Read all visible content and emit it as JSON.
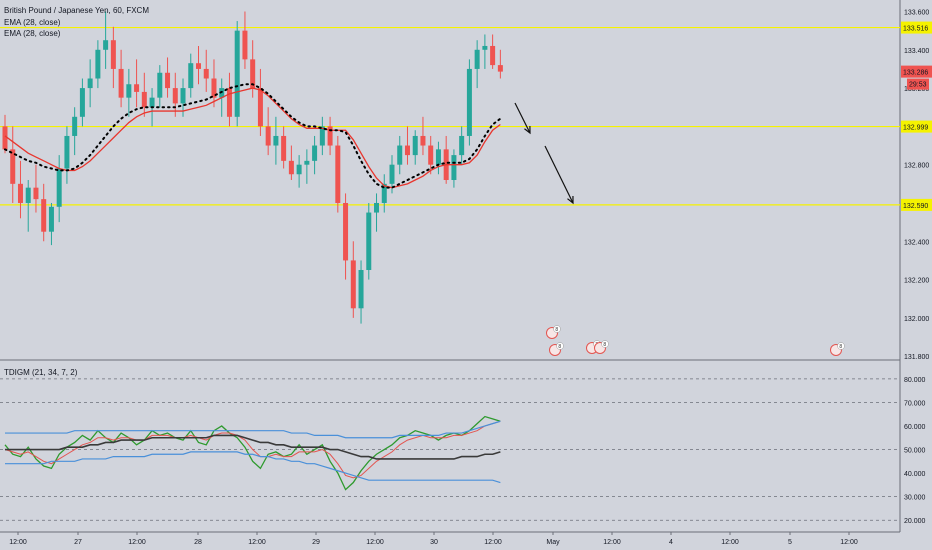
{
  "header": {
    "symbol_line": "British Pound / Japanese Yen, 60, FXCM",
    "ema_1": "EMA (28, close)",
    "ema_2": "EMA (28, close)"
  },
  "indicator": {
    "label": "TDIGM (21, 34, 7, 2)",
    "ticks": [
      "80.000",
      "70.000",
      "60.000",
      "50.000",
      "40.000",
      "30.000",
      "20.000"
    ],
    "dashed_levels": [
      80,
      70,
      50,
      30,
      20
    ]
  },
  "colors": {
    "background": "#d1d4dc",
    "level_line": "#f5f200",
    "up_candle": "#26a69a",
    "down_candle": "#ef5350",
    "ema_red": "#e8362e",
    "ema_dots": "#000000",
    "rsi_green": "#2e9a2e",
    "signal_red": "#e35550",
    "band_blue": "#4a90d9",
    "mid_black": "#3a3a3a",
    "price_label": "#ef5350",
    "level_label": "#f5f200"
  },
  "chart_data": [
    {
      "type": "candlestick",
      "title": "British Pound / Japanese Yen, 60, FXCM",
      "ylim": [
        131.78,
        133.66
      ],
      "y_ticks": [
        "133.600",
        "133.400",
        "133.200",
        "133.000",
        "132.800",
        "132.600",
        "132.400",
        "132.200",
        "132.000",
        "131.800"
      ],
      "x_ticks": [
        "12:00",
        "27",
        "12:00",
        "28",
        "12:00",
        "29",
        "12:00",
        "30",
        "12:00",
        "May",
        "12:00",
        "4",
        "12:00",
        "5",
        "12:00"
      ],
      "horizontal_levels": [
        {
          "value": 133.516,
          "label": "133.516"
        },
        {
          "value": 132.999,
          "label": "132.999"
        },
        {
          "value": 132.59,
          "label": "132.590"
        }
      ],
      "last_price": {
        "value": 133.286,
        "label": "133.286",
        "countdown": "29:53"
      },
      "ema_series": [
        {
          "style": "solid-red",
          "values": [
            132.95,
            132.92,
            132.89,
            132.86,
            132.84,
            132.82,
            132.8,
            132.78,
            132.77,
            132.77,
            132.79,
            132.82,
            132.86,
            132.9,
            132.94,
            132.98,
            133.02,
            133.05,
            133.07,
            133.08,
            133.08,
            133.08,
            133.08,
            133.08,
            133.09,
            133.1,
            133.11,
            133.13,
            133.15,
            133.17,
            133.18,
            133.19,
            133.2,
            133.19,
            133.16,
            133.12,
            133.08,
            133.04,
            133.01,
            132.99,
            132.99,
            132.99,
            132.98,
            132.98,
            132.98,
            132.93,
            132.86,
            132.79,
            132.73,
            132.69,
            132.68,
            132.69,
            132.7,
            132.72,
            132.74,
            132.77,
            132.79,
            132.8,
            132.8,
            132.8,
            132.81,
            132.85,
            132.92,
            132.98,
            133.01
          ]
        },
        {
          "style": "dotted-black",
          "values": [
            132.88,
            132.86,
            132.84,
            132.82,
            132.81,
            132.79,
            132.78,
            132.77,
            132.77,
            132.78,
            132.81,
            132.85,
            132.9,
            132.95,
            133,
            133.04,
            133.07,
            133.09,
            133.1,
            133.1,
            133.1,
            133.1,
            133.1,
            133.11,
            133.12,
            133.13,
            133.14,
            133.16,
            133.18,
            133.2,
            133.21,
            133.22,
            133.22,
            133.2,
            133.17,
            133.13,
            133.09,
            133.05,
            133.02,
            133,
            133,
            132.99,
            132.98,
            132.98,
            132.97,
            132.9,
            132.82,
            132.75,
            132.7,
            132.68,
            132.68,
            132.7,
            132.72,
            132.74,
            132.76,
            132.78,
            132.8,
            132.81,
            132.81,
            132.81,
            132.83,
            132.88,
            132.95,
            133.01,
            133.04
          ]
        }
      ]
    },
    {
      "type": "line",
      "title": "TDIGM (21, 34, 7, 2)",
      "ylim": [
        15,
        88
      ],
      "series": [
        {
          "style": "green",
          "values": [
            52,
            48,
            47,
            51,
            46,
            43,
            42,
            48,
            51,
            53,
            56,
            54,
            58,
            55,
            53,
            57,
            55,
            52,
            54,
            58,
            56,
            57,
            55,
            54,
            58,
            53,
            52,
            58,
            60,
            57,
            55,
            51,
            45,
            42,
            48,
            49,
            47,
            48,
            52,
            48,
            50,
            52,
            45,
            40,
            33,
            36,
            41,
            45,
            48,
            50,
            52,
            55,
            56,
            58,
            57,
            56,
            54,
            56,
            57,
            56,
            58,
            61,
            64,
            63,
            62
          ]
        },
        {
          "style": "red",
          "values": [
            50,
            49,
            48,
            49,
            47,
            45,
            44,
            46,
            48,
            50,
            52,
            53,
            55,
            55,
            54,
            55,
            55,
            54,
            54,
            56,
            56,
            56,
            55,
            55,
            56,
            55,
            54,
            56,
            57,
            57,
            56,
            54,
            50,
            47,
            47,
            48,
            47,
            47,
            49,
            49,
            49,
            50,
            48,
            44,
            39,
            38,
            39,
            42,
            45,
            47,
            49,
            52,
            54,
            55,
            56,
            55,
            55,
            55,
            56,
            56,
            57,
            58,
            60,
            61,
            62
          ]
        },
        {
          "style": "blue-upper",
          "values": [
            57,
            57,
            57,
            57,
            57,
            57,
            57,
            57,
            57,
            58,
            58,
            58,
            58,
            58,
            58,
            58,
            58,
            58,
            58,
            58,
            58,
            58,
            58,
            58,
            58,
            58,
            58,
            58,
            58,
            58,
            58,
            58,
            58,
            58,
            58,
            58,
            58,
            57,
            57,
            57,
            56,
            56,
            56,
            56,
            55,
            55,
            55,
            55,
            55,
            55,
            55,
            56,
            56,
            56,
            56,
            56,
            56,
            57,
            57,
            57,
            58,
            59,
            60,
            61,
            62
          ]
        },
        {
          "style": "blue-lower",
          "values": [
            44,
            44,
            44,
            44,
            44,
            44,
            45,
            45,
            45,
            45,
            46,
            46,
            46,
            46,
            47,
            47,
            47,
            47,
            47,
            48,
            48,
            48,
            48,
            48,
            49,
            49,
            49,
            49,
            49,
            49,
            49,
            48,
            48,
            47,
            47,
            46,
            46,
            45,
            45,
            44,
            44,
            43,
            42,
            41,
            40,
            39,
            38,
            37,
            37,
            37,
            37,
            37,
            37,
            37,
            37,
            37,
            37,
            37,
            37,
            37,
            37,
            37,
            37,
            37,
            36
          ]
        },
        {
          "style": "black-mid",
          "values": [
            50,
            50,
            50,
            50,
            50,
            50,
            50,
            50,
            51,
            51,
            51,
            52,
            52,
            53,
            53,
            54,
            54,
            54,
            54,
            55,
            55,
            55,
            55,
            55,
            55,
            55,
            55,
            56,
            56,
            56,
            56,
            55,
            54,
            53,
            53,
            52,
            52,
            51,
            51,
            51,
            51,
            51,
            50,
            50,
            49,
            48,
            47,
            47,
            46,
            46,
            46,
            46,
            46,
            46,
            46,
            46,
            46,
            46,
            46,
            47,
            47,
            47,
            48,
            48,
            49
          ]
        }
      ]
    }
  ],
  "candles": [
    [
      133.0,
      133.06,
      132.86,
      132.88
    ],
    [
      132.88,
      133.0,
      132.6,
      132.7
    ],
    [
      132.7,
      132.82,
      132.52,
      132.6
    ],
    [
      132.6,
      132.72,
      132.45,
      132.68
    ],
    [
      132.68,
      132.8,
      132.55,
      132.62
    ],
    [
      132.62,
      132.7,
      132.4,
      132.45
    ],
    [
      132.45,
      132.6,
      132.38,
      132.58
    ],
    [
      132.58,
      132.85,
      132.5,
      132.78
    ],
    [
      132.78,
      133.0,
      132.7,
      132.95
    ],
    [
      132.95,
      133.1,
      132.85,
      133.05
    ],
    [
      133.05,
      133.25,
      133.0,
      133.2
    ],
    [
      133.2,
      133.35,
      133.1,
      133.25
    ],
    [
      133.25,
      133.45,
      133.2,
      133.4
    ],
    [
      133.4,
      133.6,
      133.3,
      133.45
    ],
    [
      133.45,
      133.52,
      133.2,
      133.3
    ],
    [
      133.3,
      133.4,
      133.1,
      133.15
    ],
    [
      133.15,
      133.3,
      133.05,
      133.22
    ],
    [
      133.22,
      133.35,
      133.1,
      133.18
    ],
    [
      133.18,
      133.28,
      133.05,
      133.1
    ],
    [
      133.1,
      133.2,
      133.0,
      133.15
    ],
    [
      133.15,
      133.32,
      133.1,
      133.28
    ],
    [
      133.28,
      133.36,
      133.15,
      133.2
    ],
    [
      133.2,
      133.28,
      133.05,
      133.12
    ],
    [
      133.12,
      133.25,
      133.05,
      133.2
    ],
    [
      133.2,
      133.38,
      133.15,
      133.33
    ],
    [
      133.33,
      133.42,
      133.22,
      133.3
    ],
    [
      133.3,
      133.4,
      133.18,
      133.25
    ],
    [
      133.25,
      133.35,
      133.1,
      133.15
    ],
    [
      133.15,
      133.25,
      133.05,
      133.2
    ],
    [
      133.2,
      133.28,
      133.0,
      133.05
    ],
    [
      133.05,
      133.55,
      133.0,
      133.5
    ],
    [
      133.5,
      133.6,
      133.3,
      133.35
    ],
    [
      133.35,
      133.45,
      133.15,
      133.2
    ],
    [
      133.2,
      133.3,
      132.95,
      133.0
    ],
    [
      133.0,
      133.1,
      132.85,
      132.9
    ],
    [
      132.9,
      133.05,
      132.8,
      132.95
    ],
    [
      132.95,
      133.0,
      132.78,
      132.82
    ],
    [
      132.82,
      132.9,
      132.72,
      132.75
    ],
    [
      132.75,
      132.85,
      132.68,
      132.8
    ],
    [
      132.8,
      132.88,
      132.7,
      132.82
    ],
    [
      132.82,
      132.95,
      132.75,
      132.9
    ],
    [
      132.9,
      133.05,
      132.85,
      133.0
    ],
    [
      133.0,
      133.05,
      132.85,
      132.9
    ],
    [
      132.9,
      132.95,
      132.55,
      132.6
    ],
    [
      132.6,
      132.65,
      132.2,
      132.3
    ],
    [
      132.3,
      132.4,
      132.0,
      132.05
    ],
    [
      132.05,
      132.3,
      131.97,
      132.25
    ],
    [
      132.25,
      132.6,
      132.2,
      132.55
    ],
    [
      132.55,
      132.65,
      132.45,
      132.6
    ],
    [
      132.6,
      132.75,
      132.55,
      132.7
    ],
    [
      132.7,
      132.85,
      132.65,
      132.8
    ],
    [
      132.8,
      132.95,
      132.75,
      132.9
    ],
    [
      132.9,
      133.0,
      132.8,
      132.85
    ],
    [
      132.85,
      132.98,
      132.8,
      132.95
    ],
    [
      132.95,
      133.05,
      132.85,
      132.9
    ],
    [
      132.9,
      132.95,
      132.75,
      132.8
    ],
    [
      132.8,
      132.92,
      132.75,
      132.88
    ],
    [
      132.88,
      132.95,
      132.7,
      132.72
    ],
    [
      132.72,
      132.88,
      132.68,
      132.85
    ],
    [
      132.85,
      133.0,
      132.8,
      132.95
    ],
    [
      132.95,
      133.35,
      132.9,
      133.3
    ],
    [
      133.3,
      133.45,
      133.2,
      133.4
    ],
    [
      133.4,
      133.48,
      133.3,
      133.42
    ],
    [
      133.42,
      133.48,
      133.3,
      133.32
    ],
    [
      133.32,
      133.4,
      133.25,
      133.286
    ]
  ],
  "event_markers": [
    {
      "label": "8",
      "t": 44.2
    },
    {
      "label": "8",
      "t": 44.5
    },
    {
      "label": "2",
      "t": 47.0
    },
    {
      "label": "8",
      "t": 48.0
    },
    {
      "label": "8",
      "t": 66.0
    }
  ]
}
